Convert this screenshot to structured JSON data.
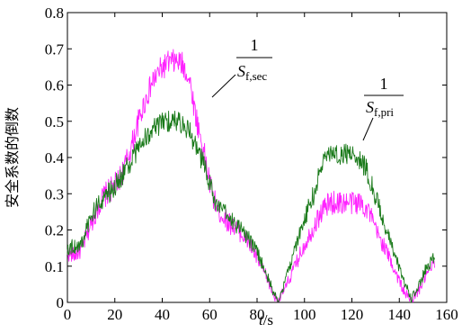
{
  "chart_data": {
    "type": "line",
    "title": "",
    "xlabel": "t/s",
    "xlabel_var": "t",
    "xlabel_unit": "/s",
    "ylabel": "安全系数的倒数",
    "xlim": [
      0,
      160
    ],
    "ylim": [
      0,
      0.8
    ],
    "xticks": [
      "0",
      "20",
      "40",
      "60",
      "80",
      "100",
      "120",
      "140",
      "160"
    ],
    "yticks": [
      "0",
      "0.1",
      "0.2",
      "0.3",
      "0.4",
      "0.5",
      "0.6",
      "0.7",
      "0.8"
    ],
    "grid": false,
    "series": [
      {
        "color": "#ff22ff",
        "noise": 0.035,
        "points": [
          [
            0,
            0.135
          ],
          [
            3,
            0.13
          ],
          [
            6,
            0.145
          ],
          [
            9,
            0.2
          ],
          [
            12,
            0.25
          ],
          [
            15,
            0.29
          ],
          [
            18,
            0.31
          ],
          [
            21,
            0.33
          ],
          [
            24,
            0.37
          ],
          [
            27,
            0.43
          ],
          [
            30,
            0.5
          ],
          [
            33,
            0.56
          ],
          [
            36,
            0.61
          ],
          [
            39,
            0.64
          ],
          [
            42,
            0.66
          ],
          [
            45,
            0.665
          ],
          [
            48,
            0.66
          ],
          [
            50,
            0.64
          ],
          [
            52,
            0.6
          ],
          [
            54,
            0.52
          ],
          [
            56,
            0.46
          ],
          [
            58,
            0.4
          ],
          [
            60,
            0.33
          ],
          [
            62,
            0.28
          ],
          [
            64,
            0.25
          ],
          [
            68,
            0.22
          ],
          [
            72,
            0.2
          ],
          [
            76,
            0.17
          ],
          [
            80,
            0.12
          ],
          [
            84,
            0.07
          ],
          [
            87,
            0.02
          ],
          [
            89,
            0.005
          ],
          [
            92,
            0.04
          ],
          [
            96,
            0.1
          ],
          [
            100,
            0.16
          ],
          [
            104,
            0.21
          ],
          [
            108,
            0.26
          ],
          [
            111,
            0.275
          ],
          [
            115,
            0.275
          ],
          [
            120,
            0.275
          ],
          [
            124,
            0.275
          ],
          [
            127,
            0.255
          ],
          [
            130,
            0.2
          ],
          [
            134,
            0.15
          ],
          [
            138,
            0.09
          ],
          [
            142,
            0.03
          ],
          [
            145,
            0.005
          ],
          [
            148,
            0.03
          ],
          [
            151,
            0.07
          ],
          [
            154,
            0.1
          ],
          [
            155,
            0.11
          ]
        ]
      },
      {
        "color": "#1a7a1a",
        "noise": 0.03,
        "points": [
          [
            0,
            0.15
          ],
          [
            3,
            0.155
          ],
          [
            6,
            0.16
          ],
          [
            9,
            0.22
          ],
          [
            12,
            0.26
          ],
          [
            15,
            0.29
          ],
          [
            18,
            0.305
          ],
          [
            21,
            0.33
          ],
          [
            24,
            0.36
          ],
          [
            27,
            0.39
          ],
          [
            30,
            0.43
          ],
          [
            33,
            0.455
          ],
          [
            36,
            0.475
          ],
          [
            39,
            0.49
          ],
          [
            42,
            0.5
          ],
          [
            45,
            0.505
          ],
          [
            48,
            0.495
          ],
          [
            51,
            0.48
          ],
          [
            54,
            0.43
          ],
          [
            57,
            0.39
          ],
          [
            60,
            0.33
          ],
          [
            62,
            0.28
          ],
          [
            65,
            0.25
          ],
          [
            68,
            0.24
          ],
          [
            72,
            0.21
          ],
          [
            76,
            0.18
          ],
          [
            80,
            0.14
          ],
          [
            84,
            0.08
          ],
          [
            87,
            0.025
          ],
          [
            89,
            0.005
          ],
          [
            92,
            0.06
          ],
          [
            96,
            0.15
          ],
          [
            100,
            0.23
          ],
          [
            104,
            0.3
          ],
          [
            107,
            0.37
          ],
          [
            109,
            0.41
          ],
          [
            112,
            0.41
          ],
          [
            116,
            0.41
          ],
          [
            120,
            0.41
          ],
          [
            123,
            0.4
          ],
          [
            126,
            0.37
          ],
          [
            130,
            0.29
          ],
          [
            134,
            0.21
          ],
          [
            138,
            0.13
          ],
          [
            142,
            0.06
          ],
          [
            145,
            0.01
          ],
          [
            148,
            0.04
          ],
          [
            151,
            0.09
          ],
          [
            154,
            0.12
          ],
          [
            155,
            0.125
          ]
        ]
      }
    ],
    "annotations": [
      {
        "numerator": "1",
        "symbol": "S",
        "subscript": "f,sec"
      },
      {
        "numerator": "1",
        "symbol": "S",
        "subscript": "f,pri"
      }
    ]
  }
}
